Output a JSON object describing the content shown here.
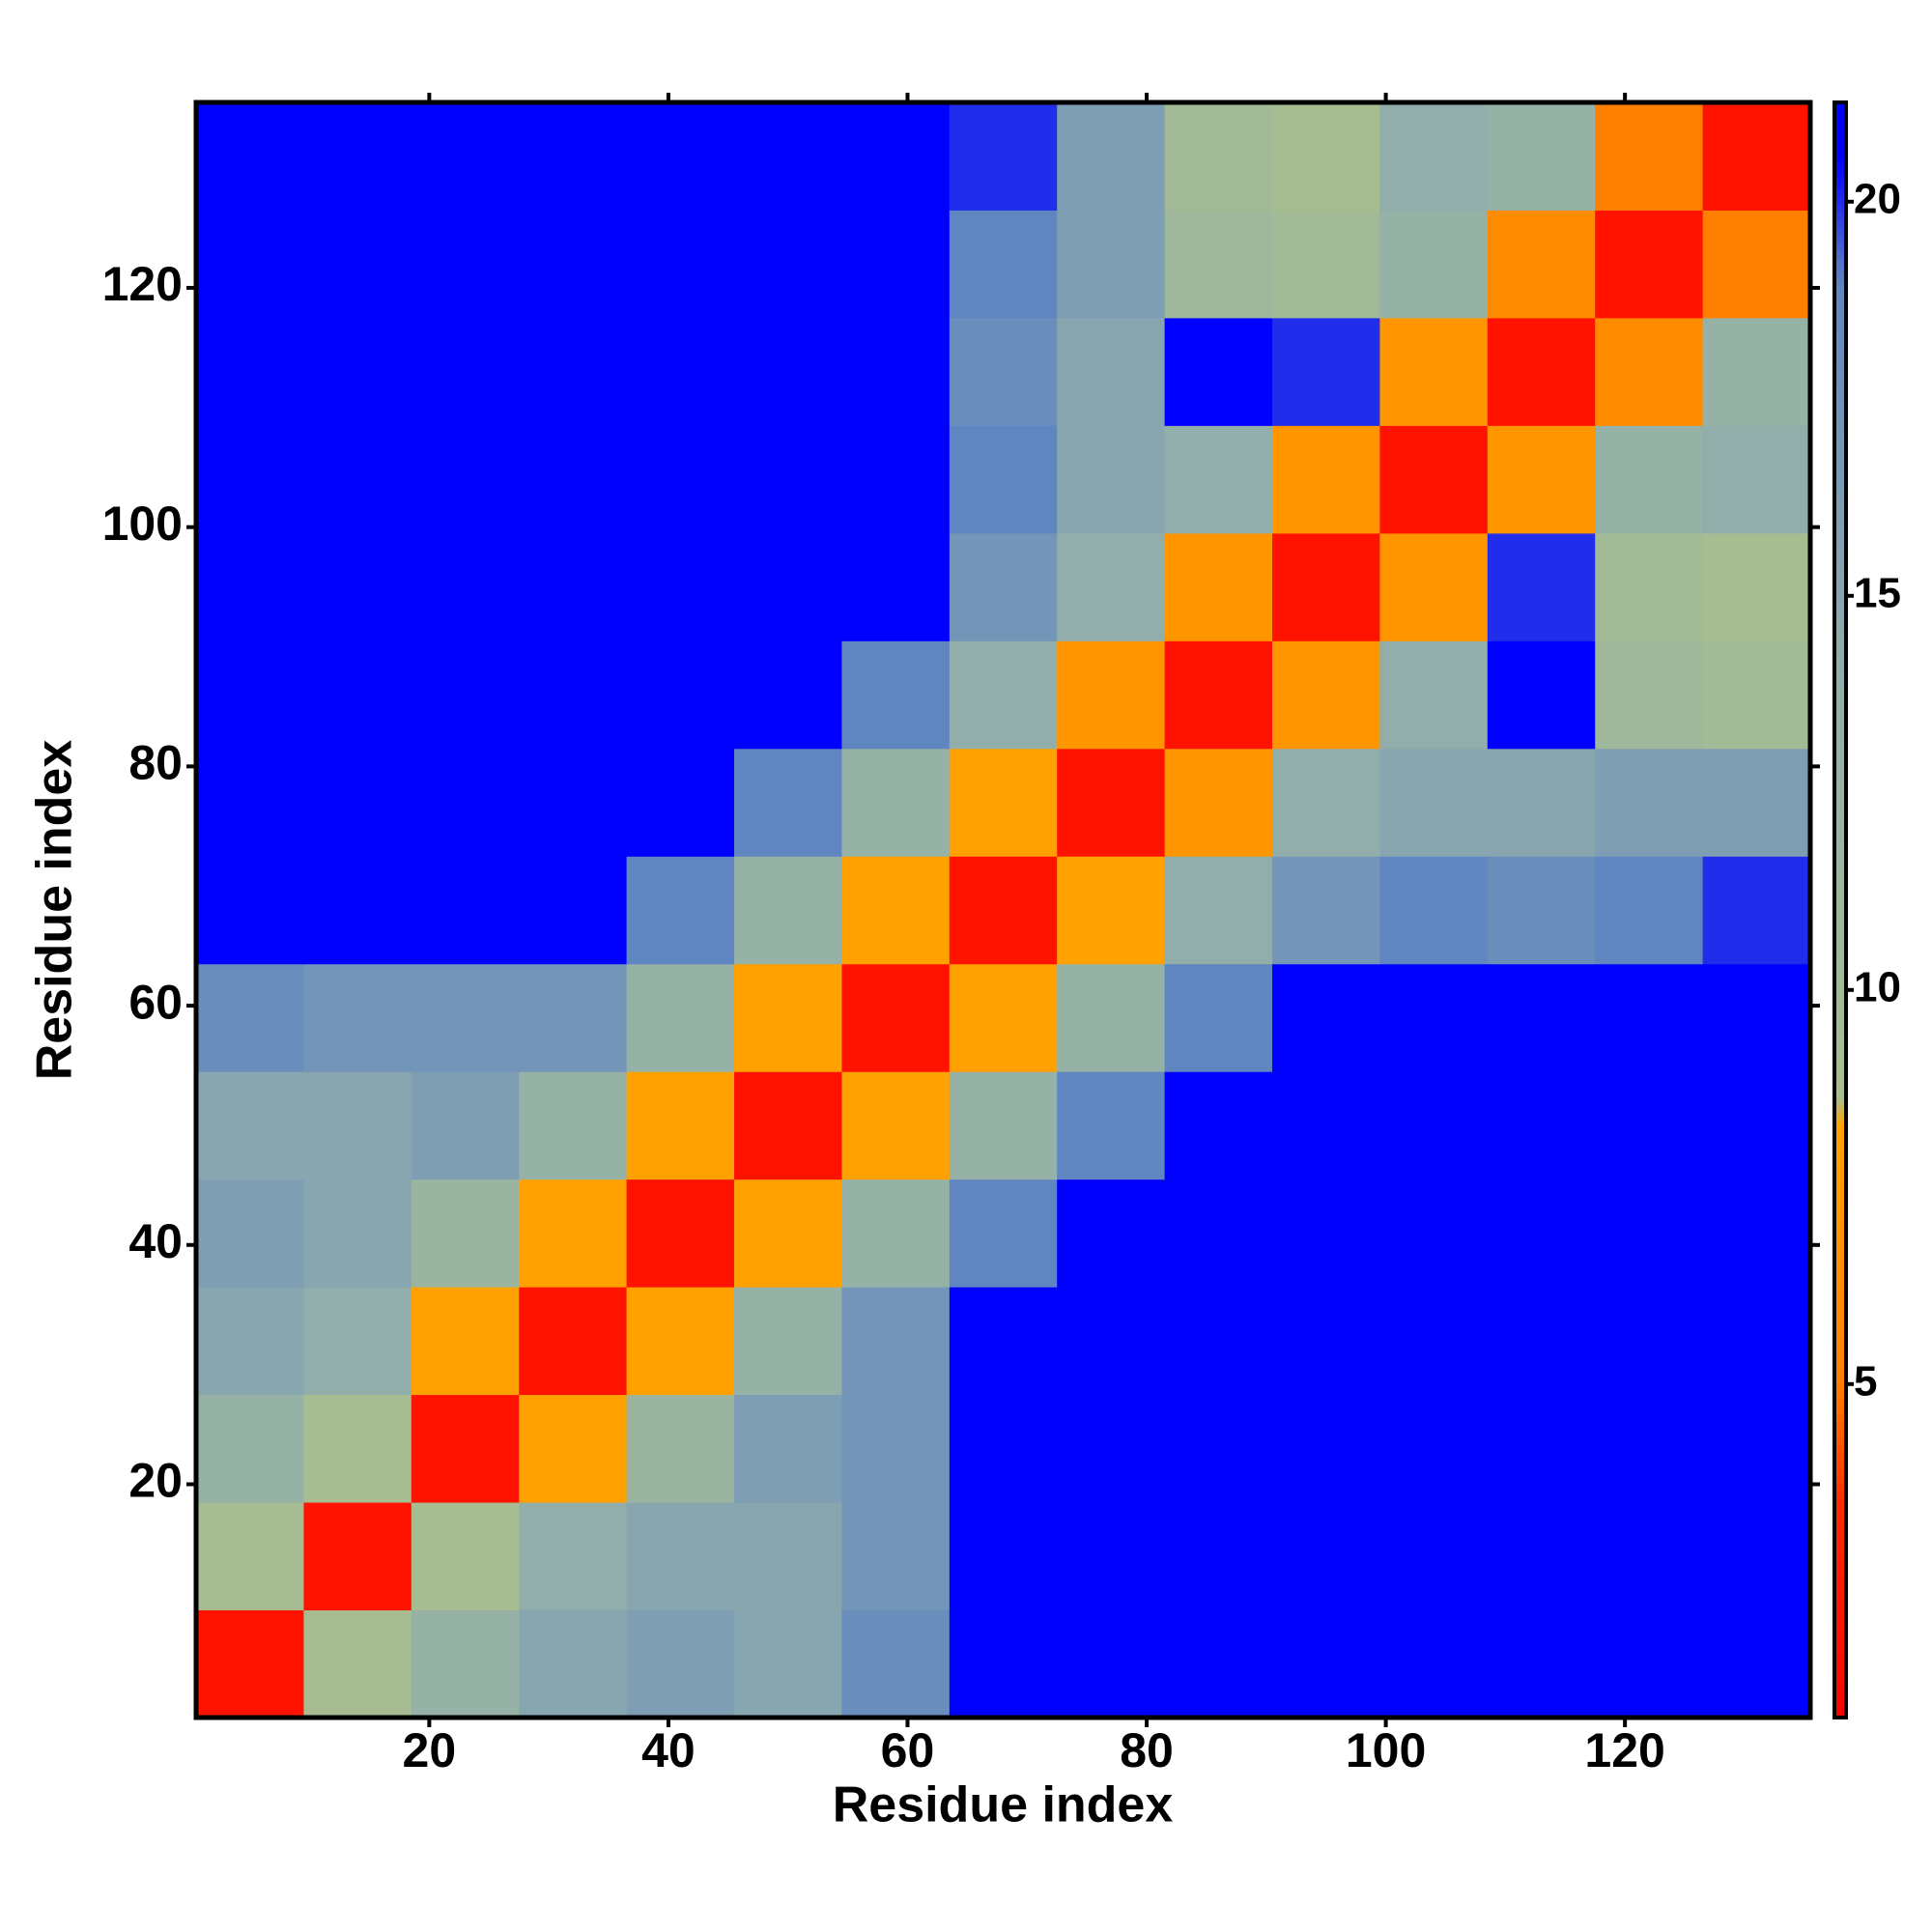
{
  "chart_data": {
    "type": "heatmap",
    "xlabel": "Residue index",
    "ylabel": "Residue index",
    "xlim": [
      0.5,
      135.5
    ],
    "ylim": [
      0.5,
      135.5
    ],
    "xticks": [
      20,
      40,
      60,
      80,
      100,
      120
    ],
    "yticks": [
      20,
      40,
      60,
      80,
      100,
      120
    ],
    "xbins": [
      0.5,
      9.5,
      18.5,
      27.5,
      36.5,
      45.5,
      54.5,
      63.5,
      72.5,
      81.5,
      90.5,
      99.5,
      108.5,
      117.5,
      126.5,
      135.5
    ],
    "ybins": [
      0.5,
      9.5,
      18.5,
      27.5,
      36.5,
      45.5,
      54.5,
      63.5,
      72.5,
      81.5,
      90.5,
      99.5,
      108.5,
      117.5,
      126.5,
      135.5
    ],
    "values": [
      [
        2,
        9,
        13,
        15,
        16,
        15,
        18,
        21,
        21,
        21,
        21,
        21,
        21,
        21,
        21
      ],
      [
        9,
        2,
        9,
        14,
        15,
        15,
        17,
        21,
        21,
        21,
        21,
        21,
        21,
        21,
        21
      ],
      [
        13,
        9,
        2,
        8,
        12,
        16,
        17,
        21,
        21,
        21,
        21,
        21,
        21,
        21,
        21
      ],
      [
        15,
        14,
        8,
        2,
        8,
        13,
        17,
        21,
        21,
        21,
        21,
        21,
        21,
        21,
        21
      ],
      [
        16,
        15,
        12,
        8,
        2,
        8,
        13,
        19,
        21,
        21,
        21,
        21,
        21,
        21,
        21
      ],
      [
        15,
        15,
        16,
        13,
        8,
        2,
        8,
        13,
        19,
        21,
        21,
        21,
        21,
        21,
        21
      ],
      [
        18,
        17,
        17,
        17,
        13,
        8,
        2,
        8,
        13,
        19,
        21,
        21,
        21,
        21,
        21
      ],
      [
        21,
        21,
        21,
        21,
        19,
        13,
        8,
        2,
        8,
        14,
        17,
        19,
        18,
        19,
        20
      ],
      [
        21,
        21,
        21,
        21,
        21,
        19,
        13,
        8,
        2,
        7,
        14,
        15,
        15,
        16,
        16
      ],
      [
        21,
        21,
        21,
        21,
        21,
        21,
        19,
        14,
        7,
        2,
        7,
        14,
        21,
        11,
        10
      ],
      [
        21,
        21,
        21,
        21,
        21,
        21,
        21,
        17,
        14,
        7,
        2,
        7,
        20,
        10,
        9
      ],
      [
        21,
        21,
        21,
        21,
        21,
        21,
        21,
        19,
        15,
        14,
        7,
        2,
        7,
        13,
        14
      ],
      [
        21,
        21,
        21,
        21,
        21,
        21,
        21,
        18,
        15,
        21,
        20,
        7,
        2,
        6,
        13
      ],
      [
        21,
        21,
        21,
        21,
        21,
        21,
        21,
        19,
        16,
        11,
        10,
        13,
        6,
        2,
        5
      ],
      [
        21,
        21,
        21,
        21,
        21,
        21,
        21,
        20,
        16,
        10,
        9,
        14,
        13,
        5,
        2
      ]
    ],
    "clim": [
      0.77,
      21.26
    ],
    "cticks": [
      5,
      10,
      15,
      20
    ],
    "colormap": [
      [
        0.77,
        "#ff0000"
      ],
      [
        3.5,
        "#ff2a00"
      ],
      [
        5,
        "#ff8000"
      ],
      [
        8.4,
        "#ffa500"
      ],
      [
        8.5,
        "#a9bf8e"
      ],
      [
        14,
        "#92aeab"
      ],
      [
        19,
        "#5f86c0"
      ],
      [
        20.5,
        "#0000ff"
      ]
    ]
  }
}
